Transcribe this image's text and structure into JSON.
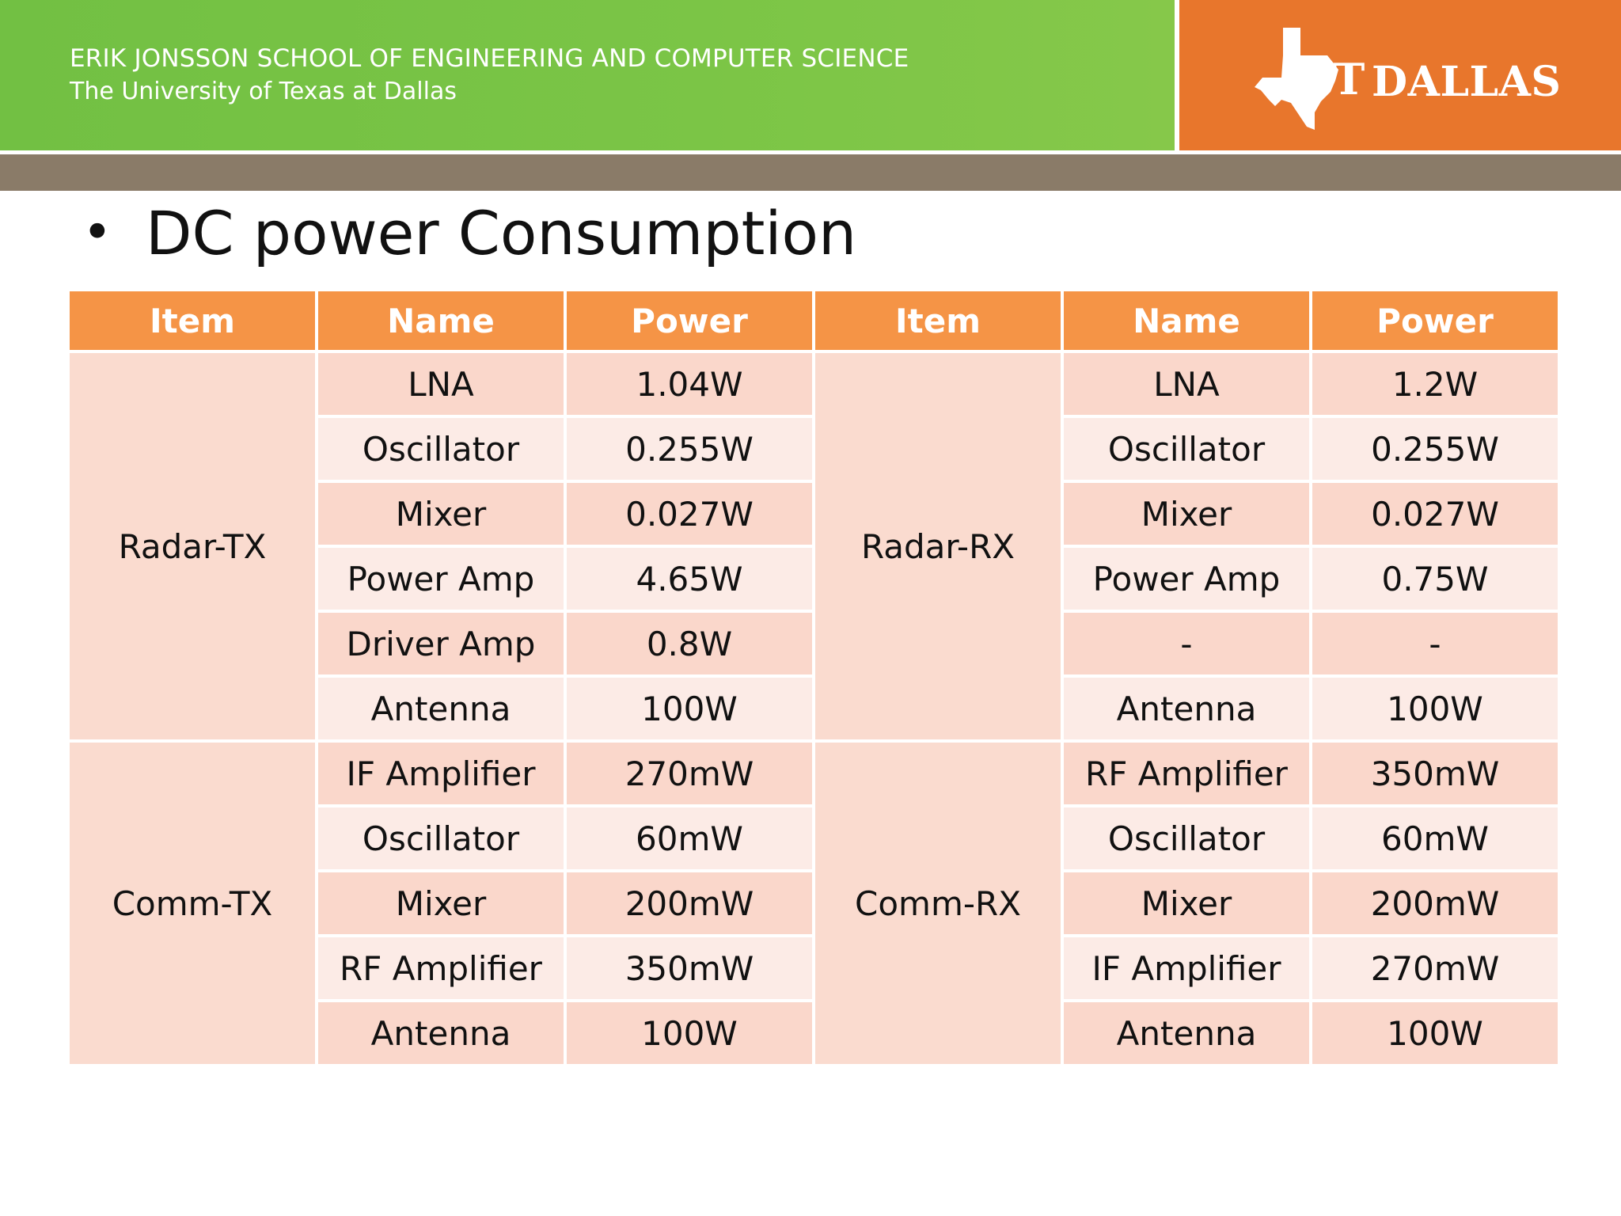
{
  "header": {
    "school": "ERIK JONSSON SCHOOL OF ENGINEERING AND COMPUTER SCIENCE",
    "university": "The University of Texas at Dallas",
    "logo_ut": "UT",
    "logo_dallas": "DALLAS",
    "colors": {
      "green": "#7bc546",
      "orange": "#e8762c",
      "band": "#8a7b68"
    }
  },
  "slide": {
    "bullet": "•",
    "title": "DC power Consumption"
  },
  "table": {
    "headers": [
      "Item",
      "Name",
      "Power",
      "Item",
      "Name",
      "Power"
    ],
    "groups": [
      {
        "left_item": "Radar-TX",
        "right_item": "Radar-RX",
        "rows": [
          {
            "left_name": "LNA",
            "left_power": "1.04W",
            "right_name": "LNA",
            "right_power": "1.2W"
          },
          {
            "left_name": "Oscillator",
            "left_power": "0.255W",
            "right_name": "Oscillator",
            "right_power": "0.255W"
          },
          {
            "left_name": "Mixer",
            "left_power": "0.027W",
            "right_name": "Mixer",
            "right_power": "0.027W"
          },
          {
            "left_name": "Power Amp",
            "left_power": "4.65W",
            "right_name": "Power Amp",
            "right_power": "0.75W"
          },
          {
            "left_name": "Driver Amp",
            "left_power": "0.8W",
            "right_name": "-",
            "right_power": "-"
          },
          {
            "left_name": "Antenna",
            "left_power": "100W",
            "right_name": "Antenna",
            "right_power": "100W"
          }
        ]
      },
      {
        "left_item": "Comm-TX",
        "right_item": "Comm-RX",
        "rows": [
          {
            "left_name": "IF Amplifier",
            "left_power": "270mW",
            "right_name": "RF Amplifier",
            "right_power": "350mW"
          },
          {
            "left_name": "Oscillator",
            "left_power": "60mW",
            "right_name": "Oscillator",
            "right_power": "60mW"
          },
          {
            "left_name": "Mixer",
            "left_power": "200mW",
            "right_name": "Mixer",
            "right_power": "200mW"
          },
          {
            "left_name": "RF Amplifier",
            "left_power": "350mW",
            "right_name": "IF Amplifier",
            "right_power": "270mW"
          },
          {
            "left_name": "Antenna",
            "left_power": "100W",
            "right_name": "Antenna",
            "right_power": "100W"
          }
        ]
      }
    ]
  }
}
